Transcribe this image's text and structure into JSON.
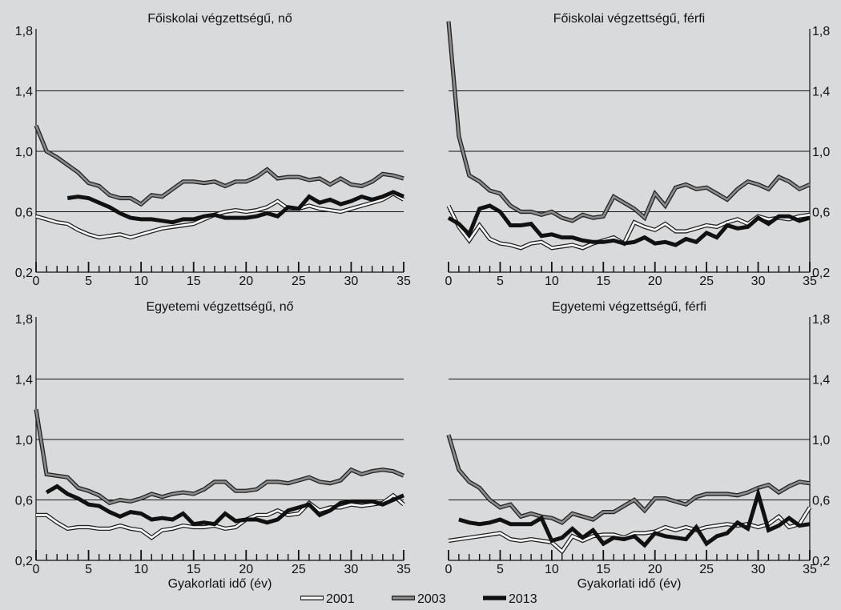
{
  "legend": [
    {
      "name": "2001",
      "style": "white"
    },
    {
      "name": "2003",
      "style": "gray"
    },
    {
      "name": "2013",
      "style": "black"
    }
  ],
  "colors": {
    "background": "#d9dadb",
    "white_line": "#ffffff",
    "gray_line": "#8c8c8c",
    "black_line": "#111111",
    "outline": "#222222"
  },
  "chart_data": [
    {
      "type": "line",
      "title": "Főiskolai végzettségű, nő",
      "xlabel": "",
      "ylabel": "",
      "xlim": [
        0,
        35
      ],
      "ylim": [
        0.2,
        1.8
      ],
      "x_ticks": [
        "0",
        "5",
        "10",
        "15",
        "20",
        "25",
        "30",
        "35"
      ],
      "y_ticks": [
        "0,2",
        "0,6",
        "1,0",
        "1,4",
        "1,8"
      ],
      "y_axis_side": "left",
      "grid": true,
      "series": [
        {
          "name": "2001",
          "x": [
            0,
            1,
            2,
            3,
            4,
            5,
            6,
            7,
            8,
            9,
            10,
            11,
            12,
            13,
            14,
            15,
            16,
            17,
            18,
            19,
            20,
            21,
            22,
            23,
            24,
            25,
            26,
            27,
            28,
            29,
            30,
            31,
            32,
            33,
            34,
            35
          ],
          "values": [
            0.57,
            0.55,
            0.53,
            0.52,
            0.48,
            0.45,
            0.43,
            0.44,
            0.45,
            0.43,
            0.45,
            0.47,
            0.49,
            0.5,
            0.51,
            0.52,
            0.55,
            0.58,
            0.6,
            0.61,
            0.6,
            0.61,
            0.63,
            0.67,
            0.62,
            0.62,
            0.64,
            0.62,
            0.61,
            0.6,
            0.62,
            0.64,
            0.66,
            0.68,
            0.72,
            0.68
          ]
        },
        {
          "name": "2003",
          "x": [
            0,
            1,
            2,
            3,
            4,
            5,
            6,
            7,
            8,
            9,
            10,
            11,
            12,
            13,
            14,
            15,
            16,
            17,
            18,
            19,
            20,
            21,
            22,
            23,
            24,
            25,
            26,
            27,
            28,
            29,
            30,
            31,
            32,
            33,
            34,
            35
          ],
          "values": [
            1.17,
            1.0,
            0.96,
            0.91,
            0.86,
            0.79,
            0.77,
            0.71,
            0.69,
            0.69,
            0.65,
            0.71,
            0.7,
            0.75,
            0.8,
            0.8,
            0.79,
            0.8,
            0.77,
            0.8,
            0.8,
            0.83,
            0.88,
            0.82,
            0.83,
            0.83,
            0.81,
            0.82,
            0.78,
            0.82,
            0.78,
            0.77,
            0.8,
            0.85,
            0.84,
            0.82
          ]
        },
        {
          "name": "2013",
          "x": [
            3,
            4,
            5,
            6,
            7,
            8,
            9,
            10,
            11,
            12,
            13,
            14,
            15,
            16,
            17,
            18,
            19,
            20,
            21,
            22,
            23,
            24,
            25,
            26,
            27,
            28,
            29,
            30,
            31,
            32,
            33,
            34,
            35
          ],
          "values": [
            0.69,
            0.7,
            0.69,
            0.66,
            0.63,
            0.59,
            0.56,
            0.55,
            0.55,
            0.54,
            0.53,
            0.55,
            0.55,
            0.57,
            0.58,
            0.56,
            0.56,
            0.56,
            0.57,
            0.59,
            0.57,
            0.63,
            0.62,
            0.7,
            0.66,
            0.68,
            0.65,
            0.67,
            0.7,
            0.68,
            0.7,
            0.73,
            0.7
          ]
        }
      ]
    },
    {
      "type": "line",
      "title": "Főiskolai végzettségű, férfi",
      "xlabel": "",
      "ylabel": "",
      "xlim": [
        0,
        35
      ],
      "ylim": [
        0.2,
        1.8
      ],
      "x_ticks": [
        "0",
        "5",
        "10",
        "15",
        "20",
        "25",
        "30",
        "35"
      ],
      "y_ticks": [
        "0,2",
        "0,6",
        "1,0",
        "1,4",
        "1,8"
      ],
      "y_axis_side": "right",
      "grid": true,
      "series": [
        {
          "name": "2001",
          "x": [
            0,
            1,
            2,
            3,
            4,
            5,
            6,
            7,
            8,
            9,
            10,
            11,
            12,
            13,
            14,
            15,
            16,
            17,
            18,
            19,
            20,
            21,
            22,
            23,
            24,
            25,
            26,
            27,
            28,
            29,
            30,
            31,
            32,
            33,
            34,
            35
          ],
          "values": [
            0.64,
            0.5,
            0.41,
            0.51,
            0.42,
            0.39,
            0.38,
            0.36,
            0.39,
            0.4,
            0.36,
            0.37,
            0.38,
            0.36,
            0.39,
            0.41,
            0.43,
            0.39,
            0.53,
            0.5,
            0.48,
            0.52,
            0.47,
            0.47,
            0.49,
            0.51,
            0.5,
            0.53,
            0.55,
            0.52,
            0.57,
            0.55,
            0.56,
            0.55,
            0.57,
            0.58
          ]
        },
        {
          "name": "2003",
          "x": [
            0,
            1,
            2,
            3,
            4,
            5,
            6,
            7,
            8,
            9,
            10,
            11,
            12,
            13,
            14,
            15,
            16,
            17,
            18,
            19,
            20,
            21,
            22,
            23,
            24,
            25,
            26,
            27,
            28,
            29,
            30,
            31,
            32,
            33,
            34,
            35
          ],
          "values": [
            1.86,
            1.1,
            0.84,
            0.8,
            0.74,
            0.72,
            0.64,
            0.6,
            0.6,
            0.58,
            0.6,
            0.56,
            0.54,
            0.58,
            0.56,
            0.57,
            0.7,
            0.66,
            0.62,
            0.56,
            0.72,
            0.64,
            0.76,
            0.78,
            0.75,
            0.76,
            0.72,
            0.68,
            0.75,
            0.8,
            0.78,
            0.75,
            0.83,
            0.8,
            0.75,
            0.78
          ]
        },
        {
          "name": "2013",
          "x": [
            0,
            1,
            2,
            3,
            4,
            5,
            6,
            7,
            8,
            9,
            10,
            11,
            12,
            13,
            14,
            15,
            16,
            17,
            18,
            19,
            20,
            21,
            22,
            23,
            24,
            25,
            26,
            27,
            28,
            29,
            30,
            31,
            32,
            33,
            34,
            35
          ],
          "values": [
            0.56,
            0.52,
            0.45,
            0.62,
            0.64,
            0.6,
            0.51,
            0.51,
            0.52,
            0.44,
            0.45,
            0.43,
            0.43,
            0.41,
            0.4,
            0.4,
            0.41,
            0.39,
            0.4,
            0.43,
            0.39,
            0.4,
            0.38,
            0.42,
            0.4,
            0.46,
            0.43,
            0.51,
            0.49,
            0.5,
            0.56,
            0.52,
            0.57,
            0.57,
            0.54,
            0.56
          ]
        }
      ]
    },
    {
      "type": "line",
      "title": "Egyetemi végzettségű, nő",
      "xlabel": "Gyakorlati idő (év)",
      "ylabel": "",
      "xlim": [
        0,
        35
      ],
      "ylim": [
        0.2,
        1.8
      ],
      "x_ticks": [
        "0",
        "5",
        "10",
        "15",
        "20",
        "25",
        "30",
        "35"
      ],
      "y_ticks": [
        "0,2",
        "0,6",
        "1,0",
        "1,4",
        "1,8"
      ],
      "y_axis_side": "left",
      "grid": true,
      "series": [
        {
          "name": "2001",
          "x": [
            0,
            1,
            2,
            3,
            4,
            5,
            6,
            7,
            8,
            9,
            10,
            11,
            12,
            13,
            14,
            15,
            16,
            17,
            18,
            19,
            20,
            21,
            22,
            23,
            24,
            25,
            26,
            27,
            28,
            29,
            30,
            31,
            32,
            33,
            34,
            35
          ],
          "values": [
            0.5,
            0.5,
            0.45,
            0.41,
            0.42,
            0.42,
            0.41,
            0.41,
            0.43,
            0.41,
            0.4,
            0.35,
            0.4,
            0.41,
            0.43,
            0.42,
            0.42,
            0.43,
            0.41,
            0.42,
            0.47,
            0.5,
            0.5,
            0.53,
            0.5,
            0.51,
            0.58,
            0.53,
            0.55,
            0.55,
            0.57,
            0.56,
            0.57,
            0.58,
            0.63,
            0.57
          ]
        },
        {
          "name": "2003",
          "x": [
            0,
            1,
            2,
            3,
            4,
            5,
            6,
            7,
            8,
            9,
            10,
            11,
            12,
            13,
            14,
            15,
            16,
            17,
            18,
            19,
            20,
            21,
            22,
            23,
            24,
            25,
            26,
            27,
            28,
            29,
            30,
            31,
            32,
            33,
            34,
            35
          ],
          "values": [
            1.2,
            0.77,
            0.76,
            0.75,
            0.68,
            0.66,
            0.63,
            0.58,
            0.6,
            0.59,
            0.61,
            0.64,
            0.62,
            0.64,
            0.65,
            0.64,
            0.67,
            0.72,
            0.72,
            0.66,
            0.66,
            0.67,
            0.72,
            0.72,
            0.71,
            0.73,
            0.75,
            0.72,
            0.71,
            0.73,
            0.8,
            0.77,
            0.79,
            0.8,
            0.79,
            0.76
          ]
        },
        {
          "name": "2013",
          "x": [
            1,
            2,
            3,
            4,
            5,
            6,
            7,
            8,
            9,
            10,
            11,
            12,
            13,
            14,
            15,
            16,
            17,
            18,
            19,
            20,
            21,
            22,
            23,
            24,
            25,
            26,
            27,
            28,
            29,
            30,
            31,
            32,
            33,
            34,
            35
          ],
          "values": [
            0.65,
            0.69,
            0.64,
            0.61,
            0.57,
            0.56,
            0.52,
            0.49,
            0.52,
            0.51,
            0.47,
            0.48,
            0.47,
            0.51,
            0.44,
            0.45,
            0.44,
            0.51,
            0.46,
            0.47,
            0.47,
            0.45,
            0.47,
            0.53,
            0.55,
            0.57,
            0.5,
            0.53,
            0.58,
            0.59,
            0.59,
            0.59,
            0.57,
            0.6,
            0.63
          ]
        }
      ]
    },
    {
      "type": "line",
      "title": "Egyetemi végzettségű, férfi",
      "xlabel": "Gyakorlati idő (év)",
      "ylabel": "",
      "xlim": [
        0,
        35
      ],
      "ylim": [
        0.2,
        1.8
      ],
      "x_ticks": [
        "0",
        "5",
        "10",
        "15",
        "20",
        "25",
        "30",
        "35"
      ],
      "y_ticks": [
        "0,2",
        "0,6",
        "1,0",
        "1,4",
        "1,8"
      ],
      "y_axis_side": "right",
      "grid": true,
      "series": [
        {
          "name": "2001",
          "x": [
            0,
            1,
            2,
            3,
            4,
            5,
            6,
            7,
            8,
            9,
            10,
            11,
            12,
            13,
            14,
            15,
            16,
            17,
            18,
            19,
            20,
            21,
            22,
            23,
            24,
            25,
            26,
            27,
            28,
            29,
            30,
            31,
            32,
            33,
            34,
            35
          ],
          "values": [
            0.33,
            0.34,
            0.35,
            0.36,
            0.37,
            0.38,
            0.34,
            0.33,
            0.34,
            0.33,
            0.32,
            0.26,
            0.36,
            0.33,
            0.36,
            0.37,
            0.37,
            0.35,
            0.38,
            0.38,
            0.39,
            0.42,
            0.4,
            0.42,
            0.4,
            0.42,
            0.43,
            0.44,
            0.43,
            0.44,
            0.42,
            0.44,
            0.49,
            0.42,
            0.44,
            0.55
          ]
        },
        {
          "name": "2003",
          "x": [
            0,
            1,
            2,
            3,
            4,
            5,
            6,
            7,
            8,
            9,
            10,
            11,
            12,
            13,
            14,
            15,
            16,
            17,
            18,
            19,
            20,
            21,
            22,
            23,
            24,
            25,
            26,
            27,
            28,
            29,
            30,
            31,
            32,
            33,
            34,
            35
          ],
          "values": [
            1.03,
            0.8,
            0.72,
            0.68,
            0.6,
            0.55,
            0.57,
            0.49,
            0.51,
            0.49,
            0.48,
            0.45,
            0.51,
            0.49,
            0.47,
            0.52,
            0.52,
            0.56,
            0.6,
            0.53,
            0.61,
            0.61,
            0.59,
            0.57,
            0.62,
            0.64,
            0.64,
            0.64,
            0.63,
            0.65,
            0.68,
            0.7,
            0.65,
            0.69,
            0.72,
            0.71
          ]
        },
        {
          "name": "2013",
          "x": [
            1,
            2,
            3,
            4,
            5,
            6,
            7,
            8,
            9,
            10,
            11,
            12,
            13,
            14,
            15,
            16,
            17,
            18,
            19,
            20,
            21,
            22,
            23,
            24,
            25,
            26,
            27,
            28,
            29,
            30,
            31,
            32,
            33,
            34,
            35
          ],
          "values": [
            0.47,
            0.45,
            0.44,
            0.45,
            0.47,
            0.44,
            0.44,
            0.44,
            0.48,
            0.33,
            0.35,
            0.41,
            0.35,
            0.4,
            0.31,
            0.35,
            0.34,
            0.36,
            0.3,
            0.38,
            0.36,
            0.35,
            0.34,
            0.42,
            0.31,
            0.36,
            0.38,
            0.45,
            0.41,
            0.64,
            0.4,
            0.43,
            0.48,
            0.43,
            0.44
          ]
        }
      ]
    }
  ]
}
